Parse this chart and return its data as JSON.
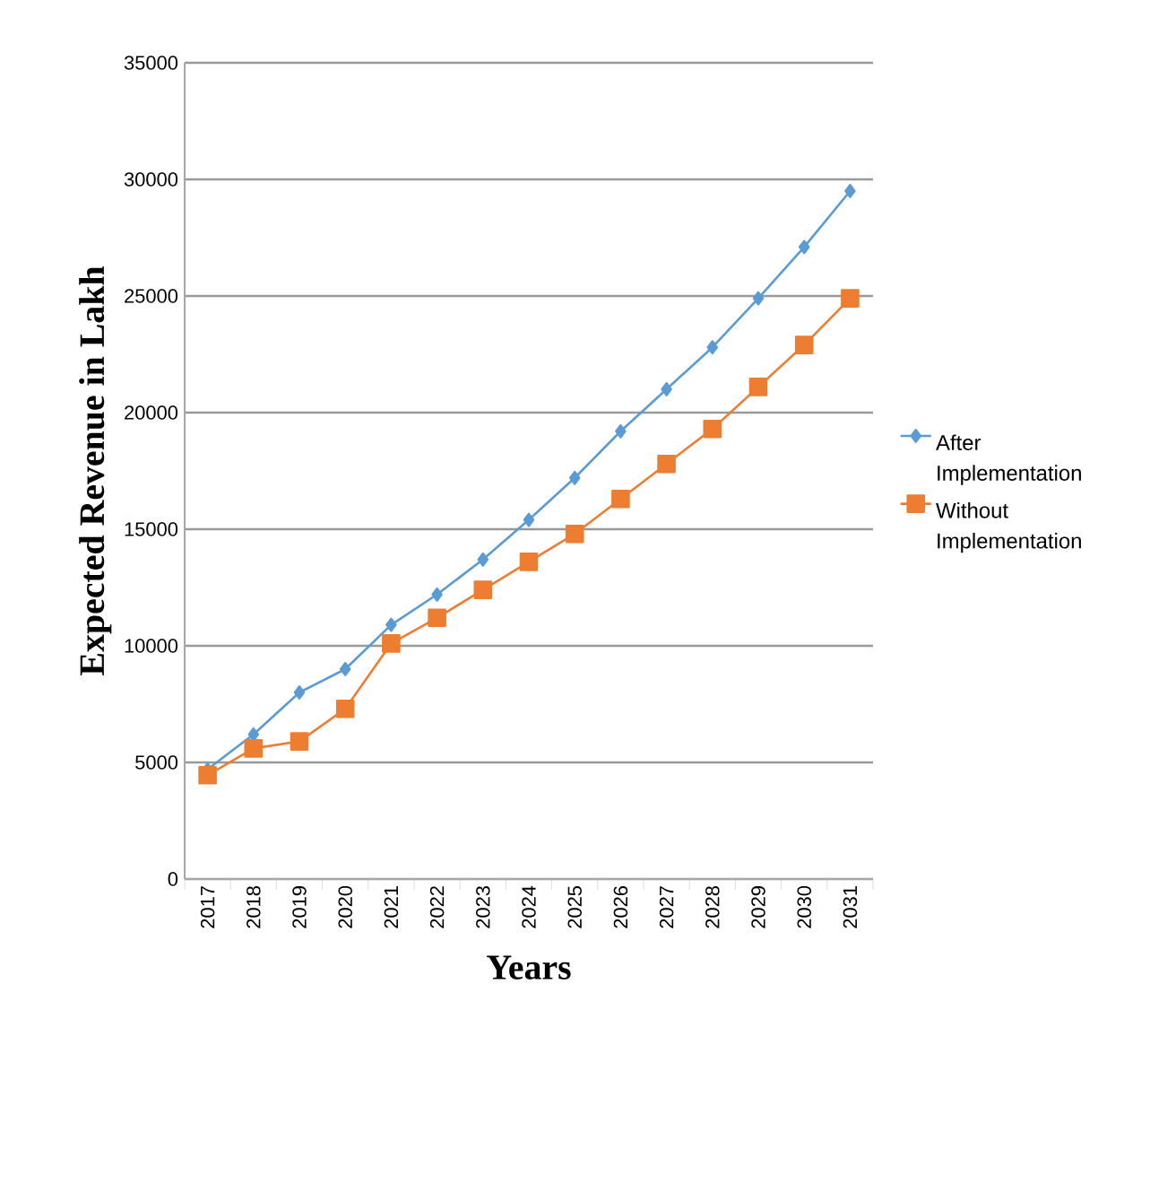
{
  "chart_data": {
    "type": "line",
    "xlabel": "Years",
    "ylabel": "Expected Revenue in Lakh",
    "categories": [
      "2017",
      "2018",
      "2019",
      "2020",
      "2021",
      "2022",
      "2023",
      "2024",
      "2025",
      "2026",
      "2027",
      "2028",
      "2029",
      "2030",
      "2031"
    ],
    "ylim": [
      0,
      35000
    ],
    "yticks": [
      0,
      5000,
      10000,
      15000,
      20000,
      25000,
      30000,
      35000
    ],
    "grid": "y",
    "legend": "right",
    "line_style": "solid",
    "series": [
      {
        "name": "After Implementation",
        "color": "#5b9bd5",
        "marker": "diamond",
        "values": [
          4700,
          6200,
          8000,
          9000,
          10900,
          12200,
          13700,
          15400,
          17200,
          19200,
          21000,
          22800,
          24900,
          27100,
          29500
        ]
      },
      {
        "name": "Without Implementation",
        "color": "#ed7d31",
        "marker": "square",
        "values": [
          4450,
          5600,
          5900,
          7300,
          10100,
          11200,
          12400,
          13600,
          14800,
          16300,
          17800,
          19300,
          21100,
          22900,
          24900
        ]
      }
    ]
  }
}
